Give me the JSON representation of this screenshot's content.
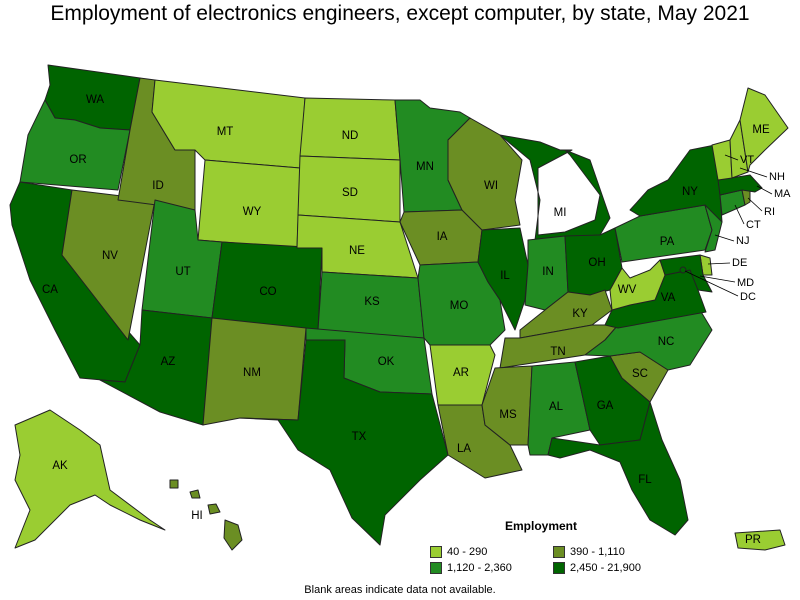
{
  "title": "Employment of electronics engineers, except computer, by state, May 2021",
  "legend": {
    "title": "Employment",
    "items": [
      {
        "label": "40 - 290",
        "color": "#9acd32"
      },
      {
        "label": "390 - 1,110",
        "color": "#6b8e23"
      },
      {
        "label": "1,120 - 2,360",
        "color": "#228b22"
      },
      {
        "label": "2,450 - 21,900",
        "color": "#006400"
      }
    ]
  },
  "footnote": "Blank areas indicate data not available.",
  "states": {
    "WA": "2,450 - 21,900",
    "OR": "1,120 - 2,360",
    "CA": "2,450 - 21,900",
    "NV": "390 - 1,110",
    "ID": "390 - 1,110",
    "MT": "40 - 290",
    "WY": "40 - 290",
    "UT": "1,120 - 2,360",
    "AZ": "2,450 - 21,900",
    "CO": "2,450 - 21,900",
    "NM": "390 - 1,110",
    "ND": "40 - 290",
    "SD": "40 - 290",
    "NE": "40 - 290",
    "KS": "1,120 - 2,360",
    "OK": "1,120 - 2,360",
    "TX": "2,450 - 21,900",
    "MN": "1,120 - 2,360",
    "IA": "390 - 1,110",
    "MO": "1,120 - 2,360",
    "AR": "40 - 290",
    "LA": "390 - 1,110",
    "WI": "390 - 1,110",
    "IL": "2,450 - 21,900",
    "MI": "2,450 - 21,900",
    "IN": "1,120 - 2,360",
    "OH": "2,450 - 21,900",
    "KY": "390 - 1,110",
    "TN": "390 - 1,110",
    "MS": "390 - 1,110",
    "AL": "1,120 - 2,360",
    "GA": "2,450 - 21,900",
    "FL": "2,450 - 21,900",
    "SC": "390 - 1,110",
    "NC": "1,120 - 2,360",
    "VA": "2,450 - 21,900",
    "WV": "40 - 290",
    "PA": "1,120 - 2,360",
    "NY": "2,450 - 21,900",
    "VT": "40 - 290",
    "NH": "40 - 290",
    "ME": "40 - 290",
    "MA": "2,450 - 21,900",
    "RI": "390 - 1,110",
    "CT": "1,120 - 2,360",
    "NJ": "1,120 - 2,360",
    "DE": "40 - 290",
    "MD": "2,450 - 21,900",
    "DC": "2,450 - 21,900",
    "AK": "40 - 290",
    "HI": "390 - 1,110",
    "PR": "40 - 290"
  },
  "labels": {
    "WA": "WA",
    "OR": "OR",
    "CA": "CA",
    "NV": "NV",
    "ID": "ID",
    "MT": "MT",
    "WY": "WY",
    "UT": "UT",
    "AZ": "AZ",
    "CO": "CO",
    "NM": "NM",
    "ND": "ND",
    "SD": "SD",
    "NE": "NE",
    "KS": "KS",
    "OK": "OK",
    "TX": "TX",
    "MN": "MN",
    "IA": "IA",
    "MO": "MO",
    "AR": "AR",
    "LA": "LA",
    "WI": "WI",
    "IL": "IL",
    "MI": "MI",
    "IN": "IN",
    "OH": "OH",
    "KY": "KY",
    "TN": "TN",
    "MS": "MS",
    "AL": "AL",
    "GA": "GA",
    "FL": "FL",
    "SC": "SC",
    "NC": "NC",
    "VA": "VA",
    "WV": "WV",
    "PA": "PA",
    "NY": "NY",
    "VT": "VT",
    "NH": "NH",
    "ME": "ME",
    "MA": "MA",
    "RI": "RI",
    "CT": "CT",
    "NJ": "NJ",
    "DE": "DE",
    "MD": "MD",
    "DC": "DC",
    "AK": "AK",
    "HI": "HI",
    "PR": "PR"
  }
}
